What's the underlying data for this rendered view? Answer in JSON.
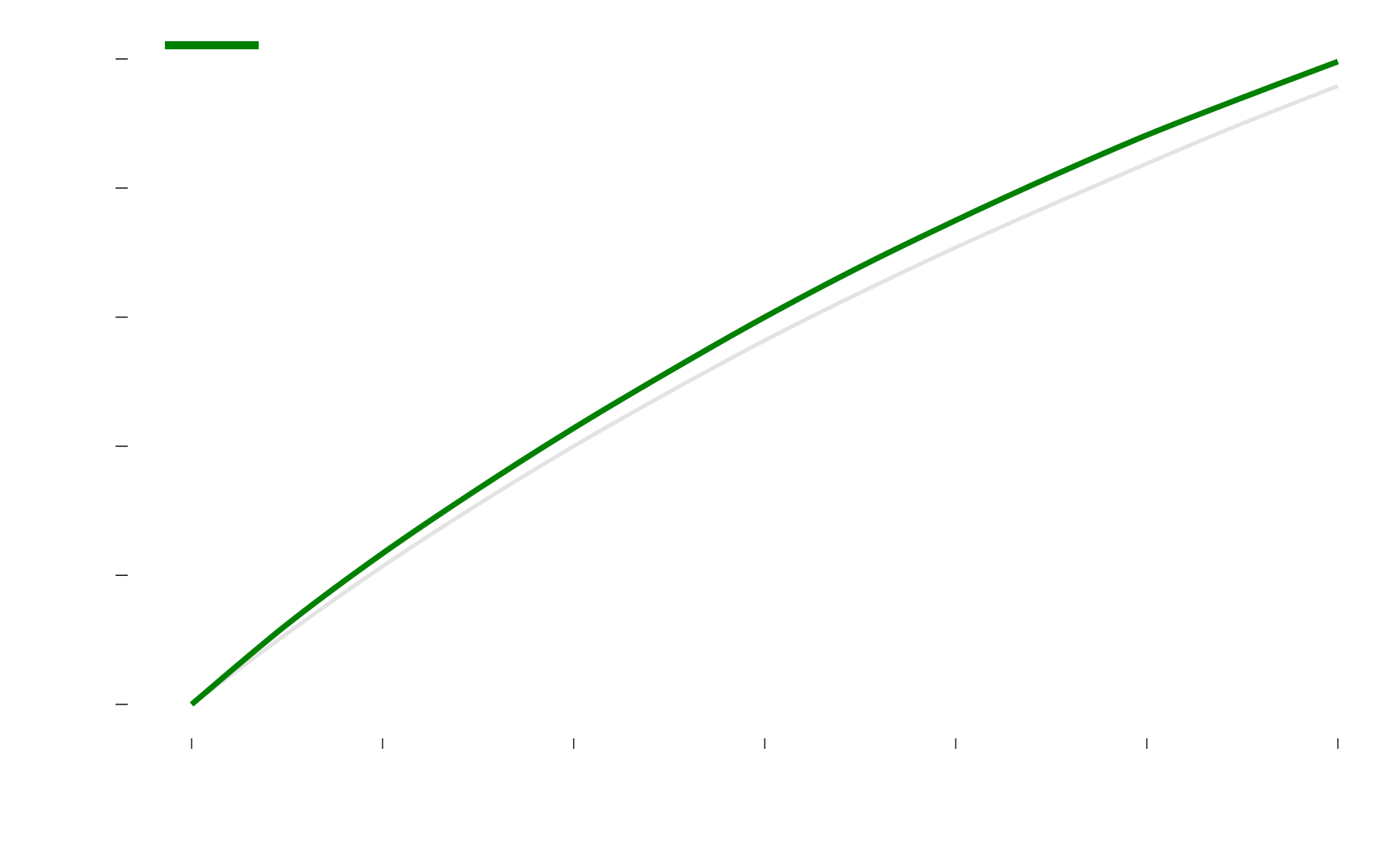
{
  "chart_data": {
    "type": "line",
    "title": "",
    "xlabel": "",
    "ylabel": "",
    "x": [
      0,
      0.5,
      1,
      1.5,
      2,
      2.5,
      3,
      3.5,
      4,
      4.5,
      5,
      5.5,
      6
    ],
    "xlim": [
      0,
      6
    ],
    "ylim": [
      0,
      5
    ],
    "xticks": [
      0,
      1,
      2,
      3,
      4,
      5,
      6
    ],
    "yticks": [
      0,
      1,
      2,
      3,
      4,
      5
    ],
    "grid": false,
    "legend": "top-left",
    "series": [
      {
        "name": "",
        "color": "#e3e3e3",
        "values": [
          0,
          0.55,
          1.07,
          1.55,
          2.0,
          2.42,
          2.82,
          3.19,
          3.54,
          3.87,
          4.19,
          4.5,
          4.79
        ]
      },
      {
        "name": "",
        "color": "#008000",
        "values": [
          0,
          0.62,
          1.17,
          1.67,
          2.14,
          2.58,
          3.0,
          3.39,
          3.75,
          4.09,
          4.41,
          4.7,
          4.98
        ]
      }
    ]
  }
}
